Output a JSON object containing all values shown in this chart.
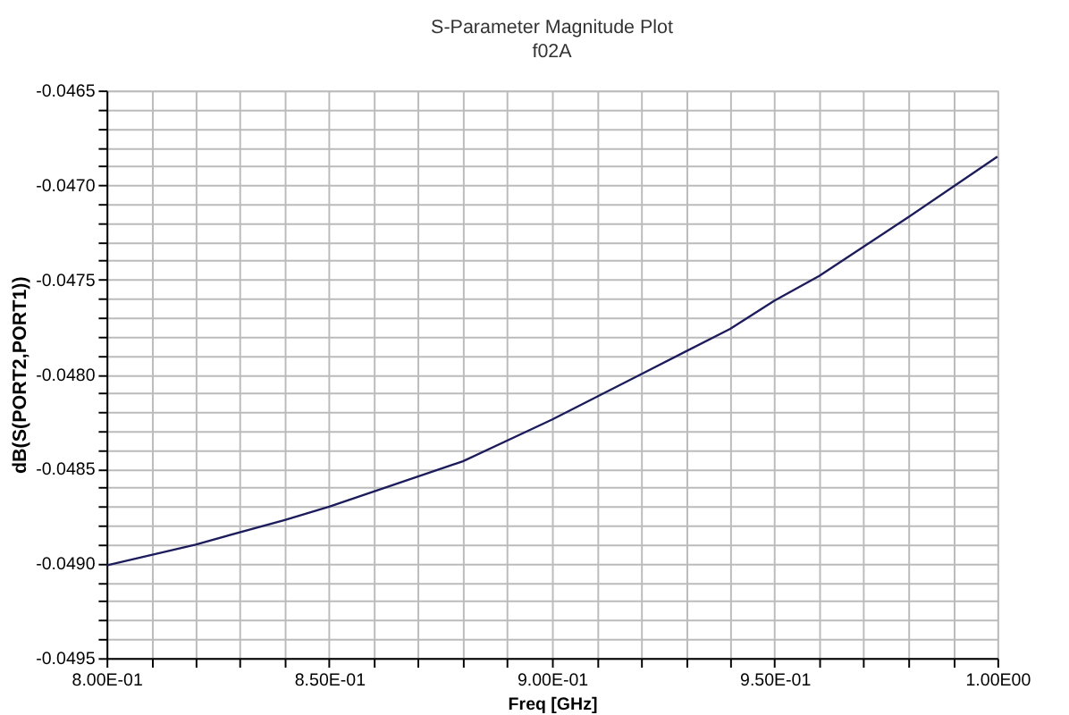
{
  "chart_data": {
    "type": "line",
    "title": "S-Parameter Magnitude Plot",
    "subtitle": "f02A",
    "xlabel": "Freq [GHz]",
    "ylabel": "dB(S(PORT2,PORT1))",
    "x": [
      0.8,
      0.82,
      0.84,
      0.85,
      0.88,
      0.9,
      0.92,
      0.94,
      0.95,
      0.96,
      0.98,
      1.0
    ],
    "series": [
      {
        "color": "#1c1c5c",
        "values": [
          -0.04901,
          -0.0489,
          -0.04877,
          -0.0487,
          -0.04846,
          -0.04824,
          -0.048,
          -0.04776,
          -0.04761,
          -0.04748,
          -0.04717,
          -0.04685
        ]
      }
    ],
    "xlim": [
      0.8,
      1.0
    ],
    "xticks": [
      {
        "value": 0.8,
        "label": "8.00E-01"
      },
      {
        "value": 0.81,
        "label": null
      },
      {
        "value": 0.82,
        "label": null
      },
      {
        "value": 0.83,
        "label": null
      },
      {
        "value": 0.84,
        "label": null
      },
      {
        "value": 0.85,
        "label": "8.50E-01"
      },
      {
        "value": 0.86,
        "label": null
      },
      {
        "value": 0.87,
        "label": null
      },
      {
        "value": 0.88,
        "label": null
      },
      {
        "value": 0.89,
        "label": null
      },
      {
        "value": 0.9,
        "label": "9.00E-01"
      },
      {
        "value": 0.91,
        "label": null
      },
      {
        "value": 0.92,
        "label": null
      },
      {
        "value": 0.93,
        "label": null
      },
      {
        "value": 0.94,
        "label": null
      },
      {
        "value": 0.95,
        "label": "9.50E-01"
      },
      {
        "value": 0.96,
        "label": null
      },
      {
        "value": 0.97,
        "label": null
      },
      {
        "value": 0.98,
        "label": null
      },
      {
        "value": 0.99,
        "label": null
      },
      {
        "value": 1.0,
        "label": "1.00E00"
      }
    ],
    "ylim": [
      -0.0495,
      -0.0465
    ],
    "yticks": [
      -0.0495,
      {
        "value": -0.0494,
        "label": null
      },
      {
        "value": -0.0493,
        "label": null
      },
      {
        "value": -0.0492,
        "label": null
      },
      {
        "value": -0.0491,
        "label": null
      },
      {
        "value": -0.049,
        "label": "-0.0490"
      },
      {
        "value": -0.0489,
        "label": null
      },
      {
        "value": -0.0488,
        "label": null
      },
      {
        "value": -0.0487,
        "label": null
      },
      {
        "value": -0.0486,
        "label": null
      },
      -0.0485,
      {
        "value": -0.0484,
        "label": null
      },
      {
        "value": -0.0483,
        "label": null
      },
      {
        "value": -0.0482,
        "label": null
      },
      {
        "value": -0.0481,
        "label": null
      },
      {
        "value": -0.048,
        "label": "-0.0480"
      },
      {
        "value": -0.0479,
        "label": null
      },
      {
        "value": -0.0478,
        "label": null
      },
      {
        "value": -0.0477,
        "label": null
      },
      {
        "value": -0.0476,
        "label": null
      },
      -0.0475,
      {
        "value": -0.0474,
        "label": null
      },
      {
        "value": -0.0473,
        "label": null
      },
      {
        "value": -0.0472,
        "label": null
      },
      {
        "value": -0.0471,
        "label": null
      },
      {
        "value": -0.047,
        "label": "-0.0470"
      },
      {
        "value": -0.0469,
        "label": null
      },
      {
        "value": -0.0468,
        "label": null
      },
      {
        "value": -0.0467,
        "label": null
      },
      {
        "value": -0.0466,
        "label": null
      },
      -0.0465
    ],
    "grid": true
  }
}
